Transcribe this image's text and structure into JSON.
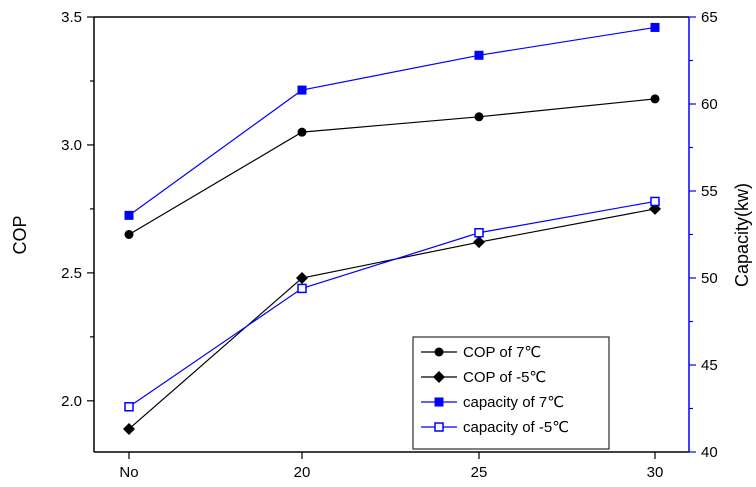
{
  "chart_data": {
    "type": "line",
    "categories": [
      "No",
      "20",
      "25",
      "30"
    ],
    "y_left": {
      "label": "COP",
      "range": [
        1.8,
        3.5
      ],
      "ticks": [
        "2.0",
        "2.5",
        "3.0",
        "3.5"
      ],
      "tick_values": [
        2.0,
        2.5,
        3.0,
        3.5
      ]
    },
    "y_right": {
      "label": "Capacity(kw)",
      "range": [
        40,
        65
      ],
      "ticks": [
        "40",
        "45",
        "50",
        "55",
        "60",
        "65"
      ],
      "tick_values": [
        40,
        45,
        50,
        55,
        60,
        65
      ],
      "color": "#0000ff"
    },
    "series": [
      {
        "name": "COP of 7℃",
        "axis": "left",
        "color": "#000000",
        "marker": "circle",
        "values": [
          2.65,
          3.05,
          3.11,
          3.18
        ]
      },
      {
        "name": "COP of -5℃",
        "axis": "left",
        "color": "#000000",
        "marker": "diamond",
        "values": [
          1.89,
          2.48,
          2.62,
          2.75
        ]
      },
      {
        "name": "capacity of 7℃",
        "axis": "right",
        "color": "#0000ff",
        "marker": "square-filled",
        "values": [
          53.6,
          60.8,
          62.8,
          64.4
        ]
      },
      {
        "name": "capacity of -5℃",
        "axis": "right",
        "color": "#0000ff",
        "marker": "square-open",
        "values": [
          42.6,
          49.4,
          52.6,
          54.4
        ]
      }
    ],
    "legend_position": "lower-right",
    "grid": false
  }
}
